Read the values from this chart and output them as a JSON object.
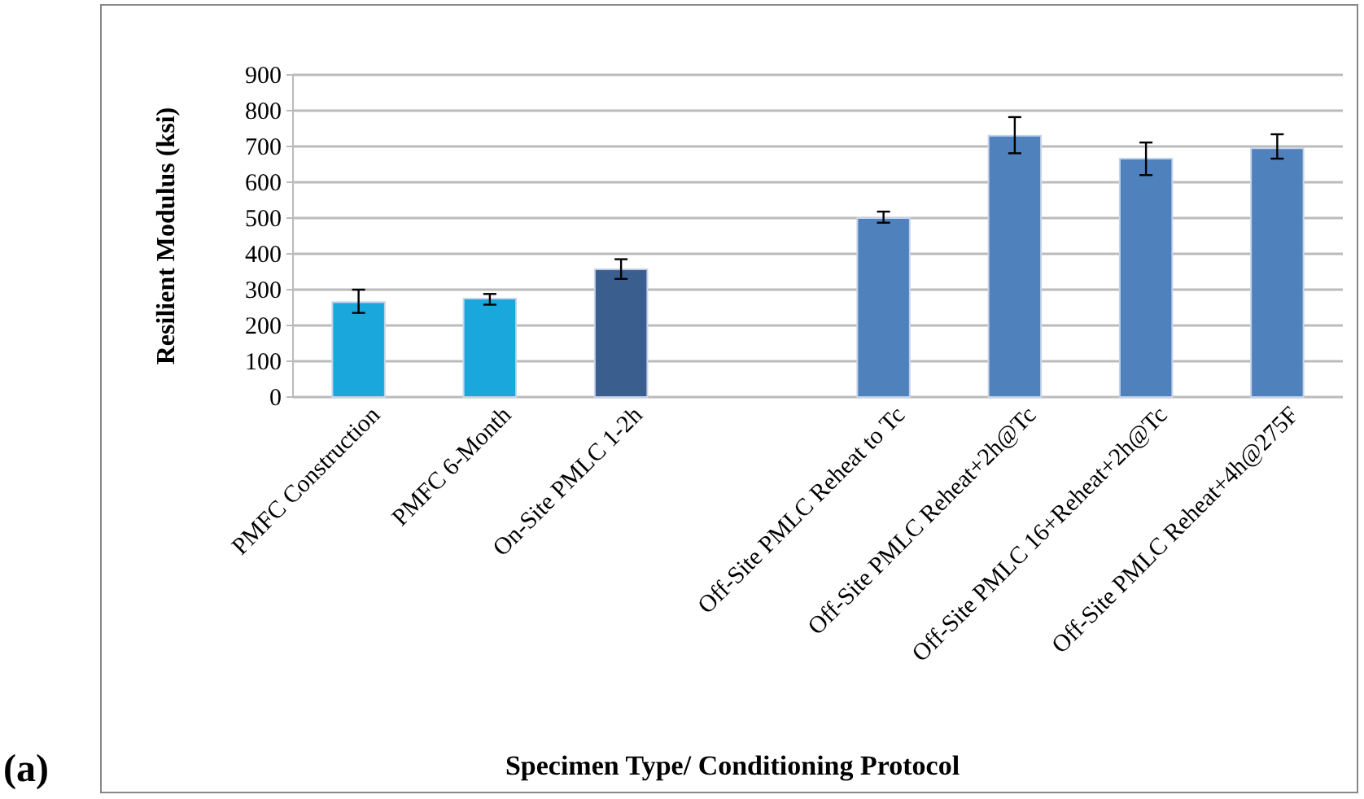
{
  "chart_data": {
    "type": "bar",
    "xlabel": "Specimen Type/ Conditioning Protocol",
    "ylabel": "Resilient Modulus (ksi)",
    "categories": [
      "PMFC Construction",
      "PMFC 6-Month",
      "On-Site PMLC 1-2h",
      null,
      "Off-Site PMLC Reheat to Tc",
      "Off-Site PMLC Reheat+2h@Tc",
      "Off-Site PMLC 16+Reheat+2h@Tc",
      "Off-Site PMLC Reheat+4h@275F"
    ],
    "values": [
      265,
      275,
      357,
      null,
      500,
      730,
      666,
      695
    ],
    "errors": [
      [
        235,
        300
      ],
      [
        258,
        288
      ],
      [
        330,
        385
      ],
      null,
      [
        487,
        518
      ],
      [
        681,
        782
      ],
      [
        620,
        711
      ],
      [
        666,
        734
      ]
    ],
    "colors": [
      "#1aa8dc",
      "#1aa8dc",
      "#3a5f8f",
      null,
      "#4f81bd",
      "#4f81bd",
      "#4f81bd",
      "#4f81bd"
    ],
    "ylim": [
      0,
      900
    ],
    "yticks": [
      0,
      100,
      200,
      300,
      400,
      500,
      600,
      700,
      800,
      900
    ],
    "grid": "y",
    "annotations": [
      "(a)"
    ]
  }
}
